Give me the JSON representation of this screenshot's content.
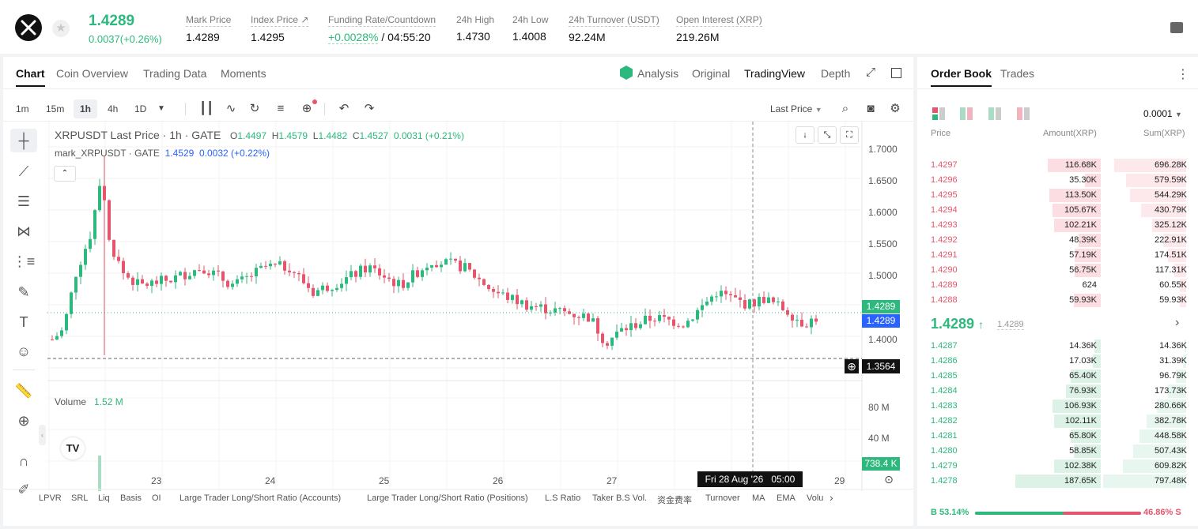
{
  "header": {
    "price": "1.4289",
    "change": "0.0037(+0.26%)",
    "stats": [
      {
        "label": "Mark Price",
        "value": "1.4289"
      },
      {
        "label": "Index Price ↗",
        "value": "1.4295"
      },
      {
        "label": "Funding Rate/Countdown",
        "value_rate": "+0.0028%",
        "value_rest": " / 04:55:20"
      },
      {
        "label": "24h High",
        "value": "1.4730"
      },
      {
        "label": "24h Low",
        "value": "1.4008"
      },
      {
        "label": "24h Turnover (USDT)",
        "value": "92.24M"
      },
      {
        "label": "Open Interest (XRP)",
        "value": "219.26M"
      }
    ]
  },
  "chart_tabs": [
    "Chart",
    "Coin Overview",
    "Trading Data",
    "Moments"
  ],
  "view_tabs": [
    "Analysis",
    "Original",
    "TradingView",
    "Depth"
  ],
  "intervals": [
    "1m",
    "15m",
    "1h",
    "4h",
    "1D"
  ],
  "price_type": "Last Price",
  "legend": {
    "title": "XRPUSDT Last Price · 1h · GATE",
    "o_label": "O",
    "o": "1.4497",
    "h_label": "H",
    "h": "1.4579",
    "l_label": "L",
    "l": "1.4482",
    "c_label": "C",
    "c": "1.4527",
    "chg": "0.0031",
    "chg_pct": "(+0.21%)",
    "mark_title": "mark_XRPUSDT · GATE",
    "mark_val": "1.4529",
    "mark_chg": "0.0032",
    "mark_pct": "(+0.22%)"
  },
  "volume_label": "Volume",
  "volume_value": "1.52 M",
  "price_axis": [
    "1.7000",
    "1.6500",
    "1.6000",
    "1.5500",
    "1.5000",
    "1.4000"
  ],
  "last_price_tag": "1.4289",
  "mark_price_tag": "1.4289",
  "cross_price_tag": "1.3564",
  "volume_axis": [
    "80 M",
    "40 M"
  ],
  "volume_tag": "738.4 K",
  "date_ticks": [
    "23",
    "24",
    "25",
    "26",
    "27",
    "29"
  ],
  "cross_date": "Fri 28 Aug '26   05:00",
  "indicators": [
    "LPVR",
    "SRL",
    "Liq",
    "Basis",
    "OI",
    "Large Trader Long/Short Ratio (Accounts)",
    "Large Trader Long/Short Ratio (Positions)",
    "L.S Ratio",
    "Taker B.S Vol.",
    "资金费率",
    "Turnover",
    "MA",
    "EMA",
    "Volu"
  ],
  "book": {
    "tabs": [
      "Order Book",
      "Trades"
    ],
    "precision": "0.0001",
    "headers": [
      "Price",
      "Amount(XRP)",
      "Sum(XRP)"
    ],
    "asks": [
      {
        "p": "1.4297",
        "a": "116.68K",
        "s": "696.28K"
      },
      {
        "p": "1.4296",
        "a": "35.30K",
        "s": "579.59K"
      },
      {
        "p": "1.4295",
        "a": "113.50K",
        "s": "544.29K"
      },
      {
        "p": "1.4294",
        "a": "105.67K",
        "s": "430.79K"
      },
      {
        "p": "1.4293",
        "a": "102.21K",
        "s": "325.12K"
      },
      {
        "p": "1.4292",
        "a": "48.39K",
        "s": "222.91K"
      },
      {
        "p": "1.4291",
        "a": "57.19K",
        "s": "174.51K"
      },
      {
        "p": "1.4290",
        "a": "56.75K",
        "s": "117.31K"
      },
      {
        "p": "1.4289",
        "a": "624",
        "s": "60.55K"
      },
      {
        "p": "1.4288",
        "a": "59.93K",
        "s": "59.93K"
      }
    ],
    "mid_price": "1.4289",
    "mid_mark": "1.4289",
    "bids": [
      {
        "p": "1.4287",
        "a": "14.36K",
        "s": "14.36K"
      },
      {
        "p": "1.4286",
        "a": "17.03K",
        "s": "31.39K"
      },
      {
        "p": "1.4285",
        "a": "65.40K",
        "s": "96.79K"
      },
      {
        "p": "1.4284",
        "a": "76.93K",
        "s": "173.73K"
      },
      {
        "p": "1.4283",
        "a": "106.93K",
        "s": "280.66K"
      },
      {
        "p": "1.4282",
        "a": "102.11K",
        "s": "382.78K"
      },
      {
        "p": "1.4281",
        "a": "65.80K",
        "s": "448.58K"
      },
      {
        "p": "1.4280",
        "a": "58.85K",
        "s": "507.43K"
      },
      {
        "p": "1.4279",
        "a": "102.38K",
        "s": "609.82K"
      },
      {
        "p": "1.4278",
        "a": "187.65K",
        "s": "797.48K"
      }
    ],
    "buy_ratio": "B 53.14%",
    "sell_ratio": "46.86% S",
    "buy_fraction": 0.5314
  },
  "colors": {
    "green": "#2db87d",
    "red": "#e5556b",
    "blue": "#2962ff"
  }
}
